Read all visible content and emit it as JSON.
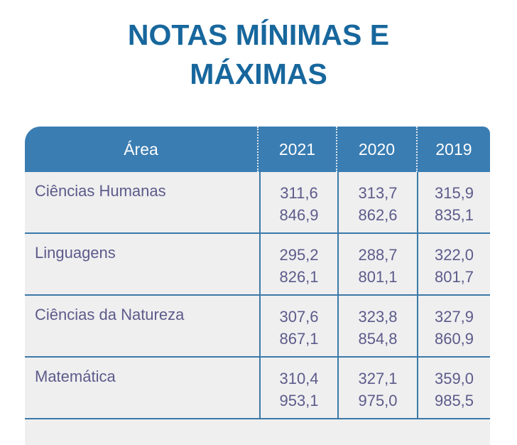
{
  "title": {
    "line1": "NOTAS MÍNIMAS E",
    "line2": "MÁXIMAS"
  },
  "table": {
    "headers": [
      "Área",
      "2021",
      "2020",
      "2019"
    ],
    "rows": [
      {
        "area": "Ciências Humanas",
        "v": [
          [
            "311,6",
            "846,9"
          ],
          [
            "313,7",
            "862,6"
          ],
          [
            "315,9",
            "835,1"
          ]
        ]
      },
      {
        "area": "Linguagens",
        "v": [
          [
            "295,2",
            "826,1"
          ],
          [
            "288,7",
            "801,1"
          ],
          [
            "322,0",
            "801,7"
          ]
        ]
      },
      {
        "area": "Ciências da Natureza",
        "v": [
          [
            "307,6",
            "867,1"
          ],
          [
            "323,8",
            "854,8"
          ],
          [
            "327,9",
            "860,9"
          ]
        ]
      },
      {
        "area": "Matemática",
        "v": [
          [
            "310,4",
            "953,1"
          ],
          [
            "327,1",
            "975,0"
          ],
          [
            "359,0",
            "985,5"
          ]
        ]
      }
    ]
  }
}
